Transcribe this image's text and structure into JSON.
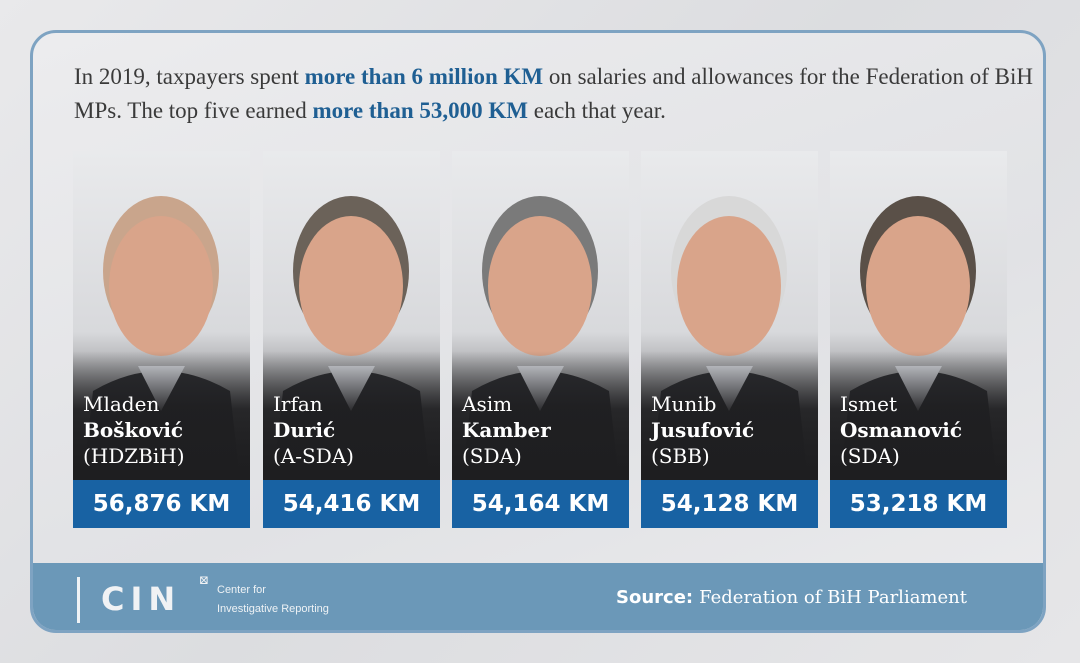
{
  "intro": {
    "part1": "In 2019, taxpayers spent ",
    "bold1": "more than 6 million KM",
    "part2": " on salaries and allowances for the Federation of BiH MPs. The top five earned ",
    "bold2": "more than 53,000 KM",
    "part3": " each that year."
  },
  "mps": [
    {
      "first": "Mladen",
      "last": "Bošković",
      "party": "(HDZBiH)",
      "amount": "56,876 KM"
    },
    {
      "first": "Irfan",
      "last": "Durić",
      "party": "(A-SDA)",
      "amount": "54,416 KM"
    },
    {
      "first": "Asim",
      "last": "Kamber",
      "party": "(SDA)",
      "amount": "54,164 KM"
    },
    {
      "first": "Munib",
      "last": "Jusufović",
      "party": "(SBB)",
      "amount": "54,128 KM"
    },
    {
      "first": "Ismet",
      "last": "Osmanović",
      "party": "(SDA)",
      "amount": "53,218 KM"
    }
  ],
  "footer": {
    "logo": "CIN",
    "org_line1": "Center for",
    "org_line2": "Investigative Reporting",
    "source_label": "Source:",
    "source_value": "Federation of BiH Parliament"
  },
  "colors": {
    "accent": "#1862a3",
    "footer": "#6b98b8",
    "border": "#7ea3c2"
  }
}
